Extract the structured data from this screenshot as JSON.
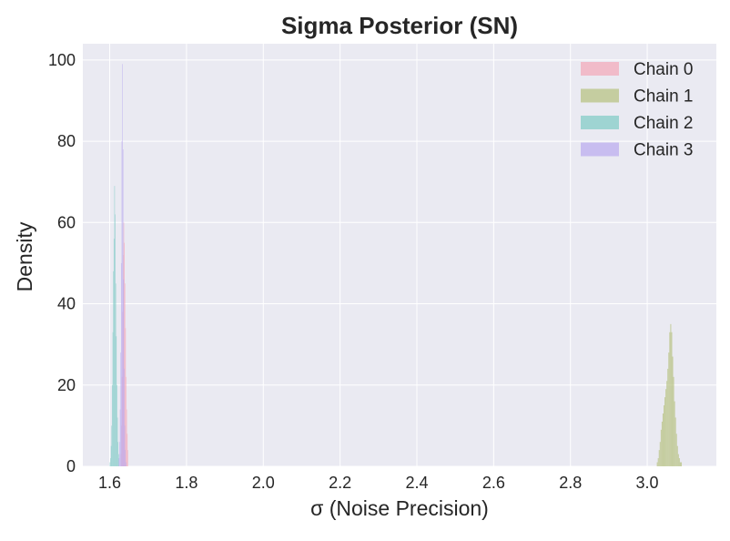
{
  "chart_data": {
    "type": "histogram",
    "title": "Sigma Posterior (SN)",
    "xlabel": "σ (Noise Precision)",
    "ylabel": "Density",
    "xlim": [
      1.53,
      3.18
    ],
    "ylim": [
      0,
      104
    ],
    "xticks": [
      1.6,
      1.8,
      2.0,
      2.2,
      2.4,
      2.6,
      2.8,
      3.0
    ],
    "xtick_labels": [
      "1.6",
      "1.8",
      "2.0",
      "2.2",
      "2.4",
      "2.6",
      "2.8",
      "3.0"
    ],
    "yticks": [
      0,
      20,
      40,
      60,
      80,
      100
    ],
    "ytick_labels": [
      "0",
      "20",
      "40",
      "60",
      "80",
      "100"
    ],
    "grid": true,
    "legend_position": "top-right",
    "series": [
      {
        "name": "Chain 0",
        "color": "#f4a6b8",
        "opacity": 0.7,
        "bin_width": 0.0015,
        "bins": [
          [
            1.6285,
            3
          ],
          [
            1.63,
            10
          ],
          [
            1.6315,
            22
          ],
          [
            1.633,
            38
          ],
          [
            1.6345,
            52
          ],
          [
            1.636,
            60
          ],
          [
            1.6375,
            55
          ],
          [
            1.639,
            45
          ],
          [
            1.6405,
            34
          ],
          [
            1.642,
            22
          ],
          [
            1.6435,
            14
          ],
          [
            1.645,
            8
          ],
          [
            1.6465,
            4
          ]
        ]
      },
      {
        "name": "Chain 1",
        "color": "#b5c17e",
        "opacity": 0.7,
        "bin_width": 0.0025,
        "bins": [
          [
            3.025,
            1
          ],
          [
            3.0275,
            2
          ],
          [
            3.03,
            4
          ],
          [
            3.0325,
            6
          ],
          [
            3.035,
            9
          ],
          [
            3.0375,
            11
          ],
          [
            3.04,
            13
          ],
          [
            3.0425,
            15
          ],
          [
            3.045,
            17
          ],
          [
            3.0475,
            19
          ],
          [
            3.05,
            21
          ],
          [
            3.0525,
            24
          ],
          [
            3.055,
            28
          ],
          [
            3.0575,
            33
          ],
          [
            3.06,
            35
          ],
          [
            3.0625,
            33
          ],
          [
            3.065,
            27
          ],
          [
            3.0675,
            22
          ],
          [
            3.07,
            16
          ],
          [
            3.0725,
            12
          ],
          [
            3.075,
            8
          ],
          [
            3.0775,
            5
          ],
          [
            3.08,
            3
          ],
          [
            3.0825,
            2
          ],
          [
            3.085,
            1
          ],
          [
            3.0875,
            1
          ]
        ]
      },
      {
        "name": "Chain 2",
        "color": "#7ecbc4",
        "opacity": 0.7,
        "bin_width": 0.0015,
        "bins": [
          [
            1.6,
            1
          ],
          [
            1.6015,
            2
          ],
          [
            1.603,
            5
          ],
          [
            1.6045,
            10
          ],
          [
            1.606,
            20
          ],
          [
            1.6075,
            33
          ],
          [
            1.609,
            48
          ],
          [
            1.6105,
            56
          ],
          [
            1.612,
            69
          ],
          [
            1.6135,
            62
          ],
          [
            1.615,
            45
          ],
          [
            1.6165,
            32
          ],
          [
            1.618,
            20
          ],
          [
            1.6195,
            12
          ],
          [
            1.621,
            6
          ],
          [
            1.6225,
            3
          ]
        ]
      },
      {
        "name": "Chain 3",
        "color": "#b9a9ef",
        "opacity": 0.7,
        "bin_width": 0.0015,
        "bins": [
          [
            1.6235,
            2
          ],
          [
            1.625,
            6
          ],
          [
            1.6265,
            14
          ],
          [
            1.628,
            28
          ],
          [
            1.6295,
            50
          ],
          [
            1.631,
            80
          ],
          [
            1.6325,
            99
          ],
          [
            1.634,
            78
          ],
          [
            1.6355,
            46
          ],
          [
            1.637,
            24
          ],
          [
            1.6385,
            10
          ],
          [
            1.64,
            4
          ],
          [
            1.6415,
            1
          ]
        ]
      }
    ]
  }
}
